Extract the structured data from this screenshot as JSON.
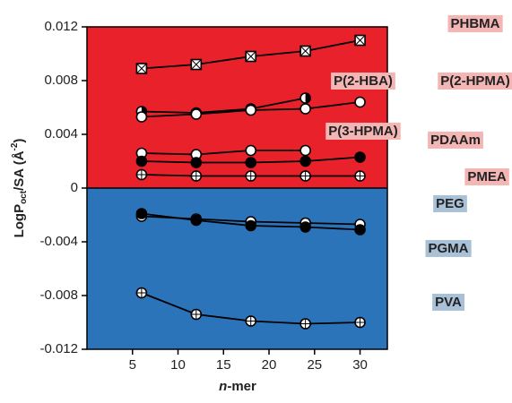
{
  "chart_data": {
    "type": "line",
    "xlabel": [
      "n",
      "-mer"
    ],
    "ylabel": [
      "LogP",
      "oct",
      "/SA (Å",
      "-2",
      ")"
    ],
    "x": [
      6,
      12,
      18,
      24,
      30
    ],
    "xlim": [
      0,
      33
    ],
    "xticks": [
      5,
      10,
      15,
      20,
      25,
      30
    ],
    "ylim": [
      -0.012,
      0.012
    ],
    "yticks": [
      -0.012,
      -0.008,
      -0.004,
      0,
      0.004,
      0.008,
      0.012
    ],
    "background_colors": {
      "positive": "#e8212b",
      "negative": "#2c74b9"
    },
    "label_colors": {
      "positive": "#f4b6b4",
      "negative": "#a9c1d6"
    },
    "series": [
      {
        "name": "PHBMA",
        "color": "#000000",
        "marker": "crossed-square",
        "values": [
          0.0089,
          0.0092,
          0.0098,
          0.0102,
          0.011
        ]
      },
      {
        "name": "P(2-HBA)",
        "color": "#000000",
        "marker": "half-circle",
        "values": [
          0.0057,
          0.0056,
          0.0059,
          0.0067,
          null
        ]
      },
      {
        "name": "P(2-HPMA)",
        "color": "#000000",
        "marker": "circle-open",
        "values": [
          0.0053,
          0.0055,
          0.0058,
          0.0059,
          0.0064
        ]
      },
      {
        "name": "P(3-HPMA)",
        "color": "#000000",
        "marker": "circle-open",
        "values": [
          0.0026,
          0.0025,
          0.0028,
          0.0028,
          null
        ]
      },
      {
        "name": "PDAAm",
        "color": "#000000",
        "marker": "circle-filled",
        "values": [
          0.002,
          0.0019,
          0.0019,
          0.002,
          0.0023
        ]
      },
      {
        "name": "PMEA",
        "color": "#000000",
        "marker": "crossed-circle",
        "values": [
          0.001,
          0.0009,
          0.0009,
          0.0009,
          0.0009
        ]
      },
      {
        "name": "PEG",
        "color": "#000000",
        "marker": "circle-open",
        "values": [
          -0.0021,
          -0.0023,
          -0.0025,
          -0.0026,
          -0.0027
        ]
      },
      {
        "name": "PGMA",
        "color": "#000000",
        "marker": "circle-filled",
        "values": [
          -0.0019,
          -0.0024,
          -0.0028,
          -0.0029,
          -0.0031
        ]
      },
      {
        "name": "PVA",
        "color": "#000000",
        "marker": "crossed-circle",
        "values": [
          -0.0078,
          -0.0094,
          -0.0099,
          -0.0101,
          -0.01
        ]
      }
    ]
  }
}
